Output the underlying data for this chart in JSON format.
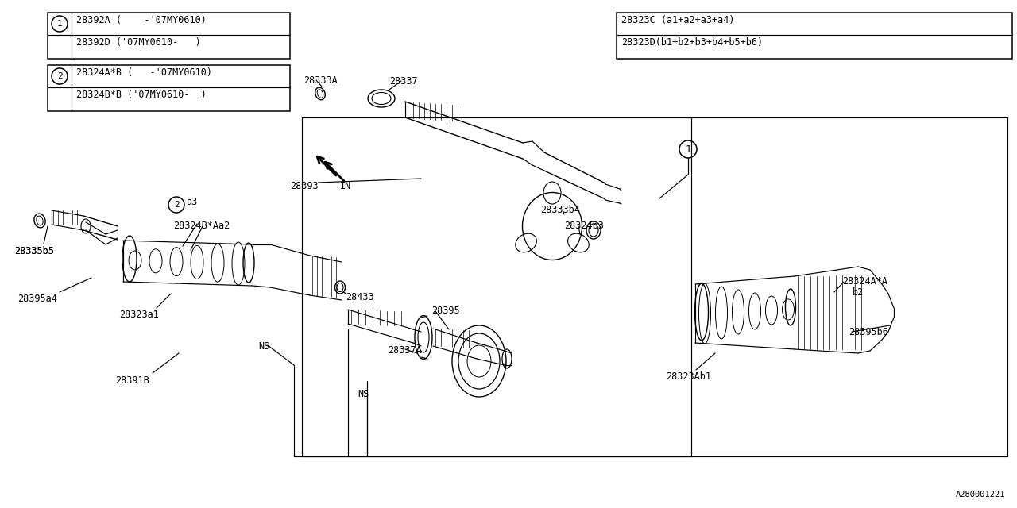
{
  "bg_color": "#ffffff",
  "lc": "#000000",
  "legend1_lines": [
    "28392A (    -’07MY0610)",
    "28392D (’07MY0610-   )"
  ],
  "legend2_lines": [
    "28324A*B (   -’07MY0610)",
    "28324B*B (’07MY0610-  )"
  ],
  "legend3_lines": [
    "28323C (a1+a2+a3+a4)",
    "28323D(b1+b2+b3+b4+b5+b6)"
  ],
  "watermark": "A280001221",
  "lw": 0.85,
  "fs": 8.5
}
